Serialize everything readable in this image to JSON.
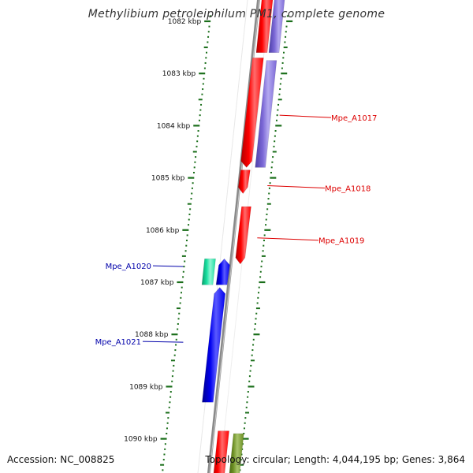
{
  "title": "Methylibium petroleiphilum PM1, complete genome",
  "accession": "Accession: NC_008825",
  "summary": "Topology: circular; Length: 4,044,195 bp; Genes: 3,864",
  "colors": {
    "backbone": "#8a8a8a",
    "tick": "#1a6e1a",
    "red_gene": "#ff0000",
    "purple_gene": "#7b68d6",
    "blue_gene": "#0000ee",
    "teal_gene": "#19e0a0",
    "olive_gene": "#6b8e23",
    "forward_label": "#dd0000",
    "reverse_label": "#0000aa"
  },
  "ticks": [
    {
      "label": "1082 kbp"
    },
    {
      "label": "1083 kbp"
    },
    {
      "label": "1084 kbp"
    },
    {
      "label": "1085 kbp"
    },
    {
      "label": "1086 kbp"
    },
    {
      "label": "1087 kbp"
    },
    {
      "label": "1088 kbp"
    },
    {
      "label": "1089 kbp"
    },
    {
      "label": "1090 kbp"
    }
  ],
  "gene_labels": [
    {
      "name": "Mpe_A1017",
      "strand": "forward"
    },
    {
      "name": "Mpe_A1018",
      "strand": "forward"
    },
    {
      "name": "Mpe_A1019",
      "strand": "forward"
    },
    {
      "name": "Mpe_A1020",
      "strand": "reverse"
    },
    {
      "name": "Mpe_A1021",
      "strand": "reverse"
    }
  ]
}
